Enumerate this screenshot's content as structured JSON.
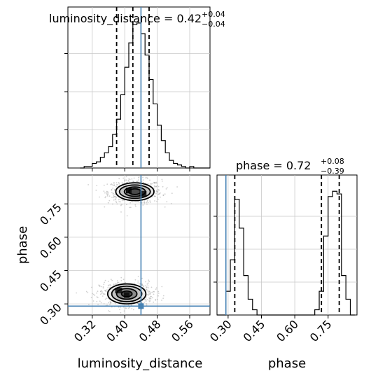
{
  "chart_data": [
    {
      "panel": "luminosity_distance marginal",
      "type": "histogram",
      "title_text": "luminosity_distance = 0.42",
      "title_sup": "+0.04",
      "title_sub": "−0.04",
      "bin_edges": [
        0.29,
        0.3,
        0.31,
        0.32,
        0.33,
        0.34,
        0.35,
        0.36,
        0.37,
        0.38,
        0.39,
        0.4,
        0.41,
        0.42,
        0.43,
        0.44,
        0.45,
        0.46,
        0.47,
        0.48,
        0.49,
        0.5,
        0.51,
        0.52,
        0.53,
        0.54,
        0.55,
        0.56,
        0.57,
        0.58,
        0.59,
        0.6,
        0.61
      ],
      "counts": [
        0,
        1,
        1,
        3,
        4,
        7,
        10,
        14,
        22,
        32,
        48,
        66,
        82,
        94,
        95,
        88,
        74,
        58,
        42,
        28,
        18,
        10,
        5,
        3,
        2,
        1,
        0,
        1,
        0,
        0,
        0,
        0
      ],
      "quantiles": [
        0.38,
        0.42,
        0.46
      ],
      "truth": 0.44,
      "xlim": [
        0.26,
        0.61
      ],
      "xticks": [
        0.32,
        0.4,
        0.48,
        0.56
      ],
      "ymax": 100,
      "grid": true
    },
    {
      "panel": "phase marginal",
      "type": "histogram",
      "title_text": "phase = 0.72",
      "title_sup": "+0.08",
      "title_sub": "−0.39",
      "bin_edges": [
        0.25,
        0.27,
        0.29,
        0.31,
        0.33,
        0.35,
        0.37,
        0.39,
        0.41,
        0.43,
        0.45,
        0.47,
        0.49,
        0.51,
        0.53,
        0.55,
        0.57,
        0.59,
        0.61,
        0.63,
        0.65,
        0.67,
        0.69,
        0.71,
        0.73,
        0.75,
        0.77,
        0.79,
        0.81,
        0.83,
        0.85,
        0.87
      ],
      "counts": [
        0,
        0,
        18,
        42,
        88,
        66,
        30,
        12,
        4,
        0,
        0,
        0,
        0,
        0,
        0,
        0,
        0,
        0,
        0,
        0,
        0,
        0,
        4,
        18,
        60,
        90,
        94,
        92,
        30,
        12,
        0
      ],
      "quantiles": [
        0.33,
        0.72,
        0.8
      ],
      "truth": 0.29,
      "xlim": [
        0.25,
        0.88
      ],
      "xticks": [
        0.3,
        0.45,
        0.6,
        0.75
      ],
      "ymax": 100,
      "grid": true
    },
    {
      "panel": "2D joint",
      "type": "scatter-contour",
      "xlabel": "luminosity_distance",
      "ylabel": "phase",
      "xlim": [
        0.26,
        0.61
      ],
      "ylim": [
        0.25,
        0.88
      ],
      "xticks": [
        0.32,
        0.4,
        0.48,
        0.56
      ],
      "yticks": [
        0.3,
        0.45,
        0.6,
        0.75
      ],
      "truth": [
        0.44,
        0.29
      ],
      "modes": [
        {
          "cx": 0.425,
          "cy": 0.805,
          "contours": [
            [
              0.047,
              0.04
            ],
            [
              0.038,
              0.03
            ],
            [
              0.026,
              0.021
            ],
            [
              0.015,
              0.013
            ]
          ],
          "peak": [
            0.41,
            0.81
          ],
          "peak2": [
            0.445,
            0.795
          ]
        },
        {
          "cx": 0.405,
          "cy": 0.345,
          "contours": [
            [
              0.047,
              0.045
            ],
            [
              0.037,
              0.035
            ],
            [
              0.025,
              0.024
            ],
            [
              0.013,
              0.013
            ]
          ],
          "peak": [
            0.405,
            0.34
          ],
          "peak2": [
            0.385,
            0.36
          ]
        }
      ],
      "grid": true
    }
  ],
  "colors": {
    "truth": "#4682b4",
    "hist": "#000000",
    "grid": "#c8c8c8"
  }
}
